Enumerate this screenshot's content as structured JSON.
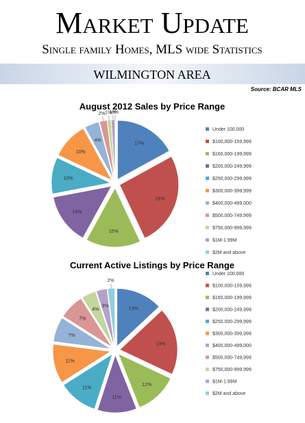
{
  "header": {
    "title": "Market Update",
    "subtitle": "Single family Homes, MLS wide Statistics",
    "area": "WILMINGTON AREA",
    "source": "Source: BCAR MLS"
  },
  "chart_data": [
    {
      "type": "pie",
      "title": "August 2012 Sales by Price Range",
      "categories": [
        "Under 100,000",
        "$100,000-159,999",
        "$160,000-199,999",
        "$200,000-249,999",
        "$250,000-299,999",
        "$300,000-399,999",
        "$400,000-499,000",
        "$500,000-749,999",
        "$750,000-999,999",
        "$1M-1.99M",
        "$2M and above"
      ],
      "values": [
        17,
        26,
        15,
        14,
        10,
        10,
        4,
        2,
        1,
        1,
        0
      ],
      "value_labels": [
        "17%",
        "26%",
        "15%",
        "14%",
        "10%",
        "10%",
        "4%",
        "2%",
        "1%",
        "1%",
        "0%"
      ],
      "colors": [
        "#4f81bd",
        "#c0504d",
        "#9bbb59",
        "#8064a2",
        "#4bacc6",
        "#f79646",
        "#95b3d7",
        "#d99694",
        "#c3d69b",
        "#b2a2c7",
        "#93cddd"
      ]
    },
    {
      "type": "pie",
      "title": "Current Active Listings by Price Range",
      "categories": [
        "Under 100,000",
        "$100,000-159,999",
        "$160,000-199,999",
        "$200,000-249,999",
        "$250,000-299,999",
        "$300,000-399,999",
        "$400,000-499,000",
        "$500,000-749,999",
        "$750,000-999,999",
        "$1M-1.99M",
        "$2M and above"
      ],
      "values": [
        13,
        19,
        12,
        11,
        11,
        11,
        7,
        7,
        4,
        3,
        2
      ],
      "value_labels": [
        "13%",
        "19%",
        "12%",
        "11%",
        "11%",
        "11%",
        "7%",
        "7%",
        "4%",
        "3%",
        "2%"
      ],
      "colors": [
        "#4f81bd",
        "#c0504d",
        "#9bbb59",
        "#8064a2",
        "#4bacc6",
        "#f79646",
        "#95b3d7",
        "#d99694",
        "#c3d69b",
        "#b2a2c7",
        "#93cddd"
      ]
    }
  ]
}
